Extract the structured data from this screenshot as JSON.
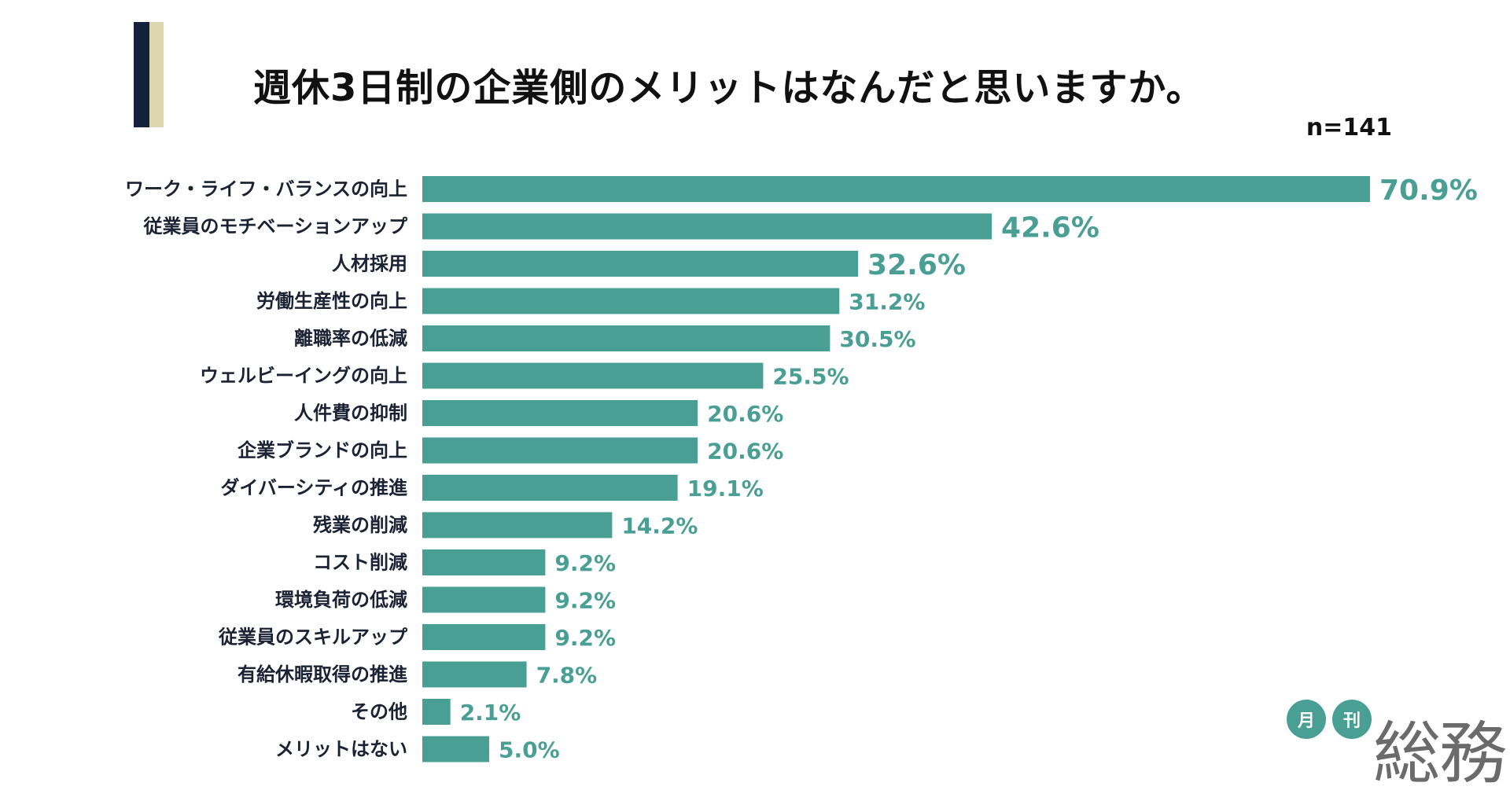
{
  "header": {
    "title": "週休3日制の企業側のメリットはなんだと思いますか。",
    "sample_size": "n=141"
  },
  "chart_data": {
    "type": "bar",
    "orientation": "horizontal",
    "title": "週休3日制の企業側のメリットはなんだと思いますか。",
    "categories": [
      "ワーク・ライフ・バランスの向上",
      "従業員のモチベーションアップ",
      "人材採用",
      "労働生産性の向上",
      "離職率の低減",
      "ウェルビーイングの向上",
      "人件費の抑制",
      "企業ブランドの向上",
      "ダイバーシティの推進",
      "残業の削減",
      "コスト削減",
      "環境負荷の低減",
      "従業員のスキルアップ",
      "有給休暇取得の推進",
      "その他",
      "メリットはない"
    ],
    "values": [
      70.9,
      42.6,
      32.6,
      31.2,
      30.5,
      25.5,
      20.6,
      20.6,
      19.1,
      14.2,
      9.2,
      9.2,
      9.2,
      7.8,
      2.1,
      5.0
    ],
    "value_labels": [
      "70.9%",
      "42.6%",
      "32.6%",
      "31.2%",
      "30.5%",
      "25.5%",
      "20.6%",
      "20.6%",
      "19.1%",
      "14.2%",
      "9.2%",
      "9.2%",
      "9.2%",
      "7.8%",
      "2.1%",
      "5.0%"
    ],
    "highlight_top": 3,
    "xlabel": "",
    "ylabel": "",
    "xlim": [
      0,
      70.9
    ],
    "grid": false,
    "legend": "none",
    "bar_color": "#4a9f94",
    "label_color": "#4a9f94"
  },
  "logo": {
    "circle_1": "月",
    "circle_2": "刊",
    "word": "総務"
  },
  "colors": {
    "accent_dark": "#14213d",
    "accent_gold": "#ddd7b0",
    "bar": "#4a9f94"
  }
}
